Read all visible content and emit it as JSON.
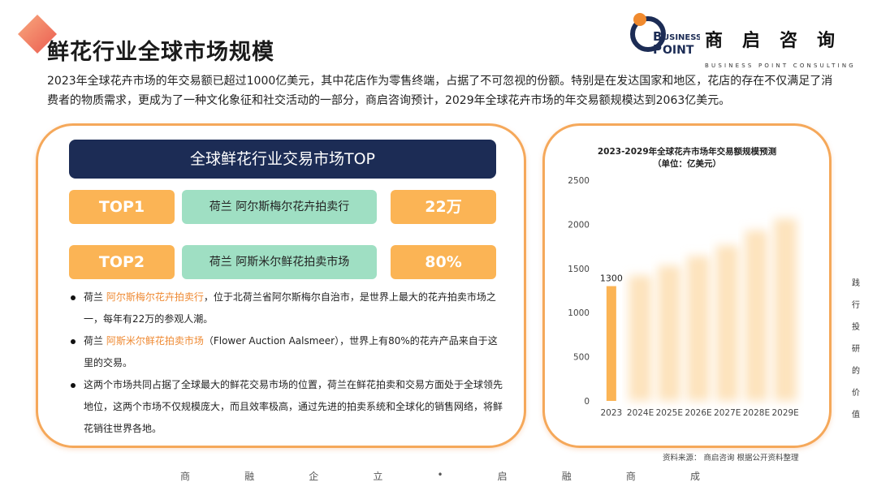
{
  "header": {
    "title": "鲜花行业全球市场规模",
    "logo": {
      "letter_b": "B",
      "word_usiness": "USINESS",
      "letter_p": "P",
      "word_oint": "OINT",
      "cn": "商启咨询",
      "en": "BUSINESS POINT CONSULTING"
    }
  },
  "intro": "2023年全球花卉市场的年交易额已超过1000亿美元，其中花店作为零售终端，占据了不可忽视的份额。特别是在发达国家和地区，花店的存在不仅满足了消费者的物质需求，更成为了一种文化象征和社交活动的一部分，商启咨询预计，2029年全球花卉市场的年交易额规模达到2063亿美元。",
  "left_panel": {
    "header": "全球鲜花行业交易市场TOP",
    "rows": [
      {
        "rank": "TOP1",
        "name": "荷兰 阿尔斯梅尔花卉拍卖行",
        "value": "22万"
      },
      {
        "rank": "TOP2",
        "name": "荷兰 阿斯米尔鲜花拍卖市场",
        "value": "80%"
      }
    ],
    "bullets": [
      {
        "pre": "荷兰 ",
        "hl": "阿尔斯梅尔花卉拍卖行",
        "post": "，位于北荷兰省阿尔斯梅尔自治市，是世界上最大的花卉拍卖市场之一，每年有22万的参观人潮。"
      },
      {
        "pre": "荷兰 ",
        "hl": "阿斯米尔鲜花拍卖市场",
        "post": "（Flower Auction Aalsmeer），世界上有80%的花卉产品来自于这里的交易。"
      },
      {
        "pre": "",
        "hl": "",
        "post": "这两个市场共同占据了全球最大的鲜花交易市场的位置，荷兰在鲜花拍卖和交易方面处于全球领先地位，这两个市场不仅规模庞大，而且效率极高，通过先进的拍卖系统和全球化的销售网络，将鲜花销往世界各地。"
      }
    ]
  },
  "chart_data": {
    "type": "bar",
    "title": "2023-2029年全球花卉市场年交易额规模预测",
    "subtitle": "（单位：亿美元）",
    "categories": [
      "2023",
      "2024E",
      "2025E",
      "2026E",
      "2027E",
      "2028E",
      "2029E"
    ],
    "values": [
      1300,
      1420,
      1530,
      1640,
      1760,
      1930,
      2063
    ],
    "data_labels": [
      "1300",
      "",
      "",
      "",
      "",
      "",
      ""
    ],
    "ylim": [
      0,
      2500
    ],
    "yticks": [
      "0",
      "500",
      "1000",
      "1500",
      "2000",
      "2500"
    ],
    "ytick_values": [
      0,
      500,
      1000,
      1500,
      2000,
      2500
    ],
    "grid": false,
    "colors": {
      "bar": "#fbb455",
      "blurred_bar": "#fde3bd"
    }
  },
  "source": "资料来源： 商启咨询 根据公开资料整理",
  "footer": [
    "商",
    "融",
    "企",
    "立",
    "•",
    "启",
    "融",
    "商",
    "成"
  ],
  "vertical_text": [
    "践",
    "行",
    "投",
    "研",
    "的",
    "价",
    "值"
  ]
}
